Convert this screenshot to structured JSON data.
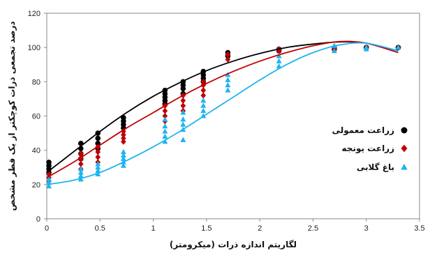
{
  "chart_data": {
    "type": "scatter",
    "xlabel": "لگاریتم اندازه ذرات (میکرومتر)",
    "ylabel": "درصد تجمعی ذرات کوچکتر از یک قطر مشخص",
    "xlim": [
      0,
      3.5
    ],
    "ylim": [
      0,
      120
    ],
    "x_ticks": [
      "0",
      "0.5",
      "1",
      "1.5",
      "2",
      "2.5",
      "3",
      "3.5"
    ],
    "y_ticks": [
      "0",
      "20",
      "40",
      "60",
      "80",
      "100",
      "120"
    ],
    "grid": "none",
    "legend_position": "right",
    "series": [
      {
        "name": "زراعت معمولی",
        "color": "#000000",
        "marker": "circle",
        "points": [
          [
            0.02,
            33
          ],
          [
            0.02,
            31
          ],
          [
            0.02,
            29
          ],
          [
            0.02,
            27
          ],
          [
            0.32,
            44
          ],
          [
            0.32,
            41
          ],
          [
            0.32,
            38
          ],
          [
            0.32,
            35
          ],
          [
            0.48,
            50
          ],
          [
            0.48,
            47
          ],
          [
            0.48,
            44
          ],
          [
            0.48,
            41
          ],
          [
            0.72,
            59
          ],
          [
            0.72,
            57
          ],
          [
            0.72,
            55
          ],
          [
            0.72,
            53
          ],
          [
            1.11,
            75
          ],
          [
            1.11,
            73
          ],
          [
            1.11,
            71
          ],
          [
            1.11,
            69
          ],
          [
            1.11,
            67
          ],
          [
            1.28,
            80
          ],
          [
            1.28,
            78
          ],
          [
            1.28,
            76
          ],
          [
            1.28,
            73
          ],
          [
            1.47,
            86
          ],
          [
            1.47,
            84
          ],
          [
            1.47,
            82
          ],
          [
            1.47,
            80
          ],
          [
            1.7,
            97
          ],
          [
            1.7,
            95
          ],
          [
            2.18,
            99
          ],
          [
            2.18,
            98
          ],
          [
            2.7,
            100
          ],
          [
            2.7,
            99
          ],
          [
            3.0,
            100
          ],
          [
            3.0,
            100
          ],
          [
            3.3,
            100
          ],
          [
            3.3,
            100
          ]
        ],
        "fit": [
          [
            0,
            27
          ],
          [
            0.25,
            39
          ],
          [
            0.5,
            51
          ],
          [
            0.75,
            62
          ],
          [
            1.0,
            71.5
          ],
          [
            1.25,
            79.5
          ],
          [
            1.5,
            86.5
          ],
          [
            1.75,
            92
          ],
          [
            2.0,
            96.5
          ],
          [
            2.25,
            100
          ],
          [
            2.5,
            102
          ],
          [
            2.75,
            103.3
          ],
          [
            3.0,
            102.5
          ],
          [
            3.3,
            98
          ]
        ]
      },
      {
        "name": "زراعت یونجه",
        "color": "#C00000",
        "marker": "diamond",
        "points": [
          [
            0.02,
            26
          ],
          [
            0.02,
            24
          ],
          [
            0.02,
            22
          ],
          [
            0.32,
            38
          ],
          [
            0.32,
            35
          ],
          [
            0.32,
            32
          ],
          [
            0.32,
            29
          ],
          [
            0.48,
            42
          ],
          [
            0.48,
            39
          ],
          [
            0.48,
            36
          ],
          [
            0.48,
            33
          ],
          [
            0.72,
            51
          ],
          [
            0.72,
            49
          ],
          [
            0.72,
            47
          ],
          [
            0.72,
            45
          ],
          [
            1.11,
            66
          ],
          [
            1.11,
            63
          ],
          [
            1.11,
            60
          ],
          [
            1.11,
            57
          ],
          [
            1.28,
            72
          ],
          [
            1.28,
            69
          ],
          [
            1.28,
            66
          ],
          [
            1.28,
            63
          ],
          [
            1.47,
            80
          ],
          [
            1.47,
            78
          ],
          [
            1.47,
            75
          ],
          [
            1.47,
            72
          ],
          [
            1.7,
            96
          ],
          [
            1.7,
            93
          ],
          [
            2.18,
            99
          ],
          [
            2.18,
            98
          ],
          [
            2.7,
            100
          ],
          [
            2.7,
            99
          ],
          [
            3.0,
            100
          ],
          [
            3.3,
            100
          ]
        ],
        "fit": [
          [
            0,
            24
          ],
          [
            0.25,
            33
          ],
          [
            0.5,
            43
          ],
          [
            0.75,
            53
          ],
          [
            1.0,
            62
          ],
          [
            1.25,
            71
          ],
          [
            1.5,
            79
          ],
          [
            1.75,
            86
          ],
          [
            2.0,
            92
          ],
          [
            2.25,
            97
          ],
          [
            2.5,
            101
          ],
          [
            2.75,
            103.5
          ],
          [
            3.0,
            102.5
          ],
          [
            3.3,
            97
          ]
        ]
      },
      {
        "name": "باغ گلابی",
        "color": "#1EB4F0",
        "marker": "triangle",
        "points": [
          [
            0.02,
            23
          ],
          [
            0.02,
            21
          ],
          [
            0.02,
            19
          ],
          [
            0.32,
            29
          ],
          [
            0.32,
            27
          ],
          [
            0.32,
            25
          ],
          [
            0.32,
            23
          ],
          [
            0.48,
            32
          ],
          [
            0.48,
            30
          ],
          [
            0.48,
            28
          ],
          [
            0.48,
            26
          ],
          [
            0.72,
            39
          ],
          [
            0.72,
            37
          ],
          [
            0.72,
            35
          ],
          [
            0.72,
            33
          ],
          [
            0.72,
            31
          ],
          [
            1.11,
            58
          ],
          [
            1.11,
            54
          ],
          [
            1.11,
            51
          ],
          [
            1.11,
            48
          ],
          [
            1.11,
            45
          ],
          [
            1.28,
            62
          ],
          [
            1.28,
            58
          ],
          [
            1.28,
            55
          ],
          [
            1.28,
            52
          ],
          [
            1.28,
            46
          ],
          [
            1.47,
            69
          ],
          [
            1.47,
            66
          ],
          [
            1.47,
            63
          ],
          [
            1.47,
            60
          ],
          [
            1.7,
            84
          ],
          [
            1.7,
            81
          ],
          [
            1.7,
            78
          ],
          [
            1.7,
            75
          ],
          [
            2.18,
            95
          ],
          [
            2.18,
            92
          ],
          [
            2.18,
            89
          ],
          [
            2.7,
            101
          ],
          [
            2.7,
            98
          ],
          [
            3.0,
            100
          ],
          [
            3.0,
            99
          ],
          [
            3.3,
            100
          ]
        ],
        "fit": [
          [
            0,
            20
          ],
          [
            0.25,
            22.5
          ],
          [
            0.5,
            27
          ],
          [
            0.75,
            34
          ],
          [
            1.0,
            42
          ],
          [
            1.25,
            51
          ],
          [
            1.5,
            61
          ],
          [
            1.75,
            71
          ],
          [
            2.0,
            81
          ],
          [
            2.25,
            90
          ],
          [
            2.5,
            97
          ],
          [
            2.75,
            101.5
          ],
          [
            3.0,
            102.5
          ],
          [
            3.3,
            98
          ]
        ]
      }
    ]
  }
}
